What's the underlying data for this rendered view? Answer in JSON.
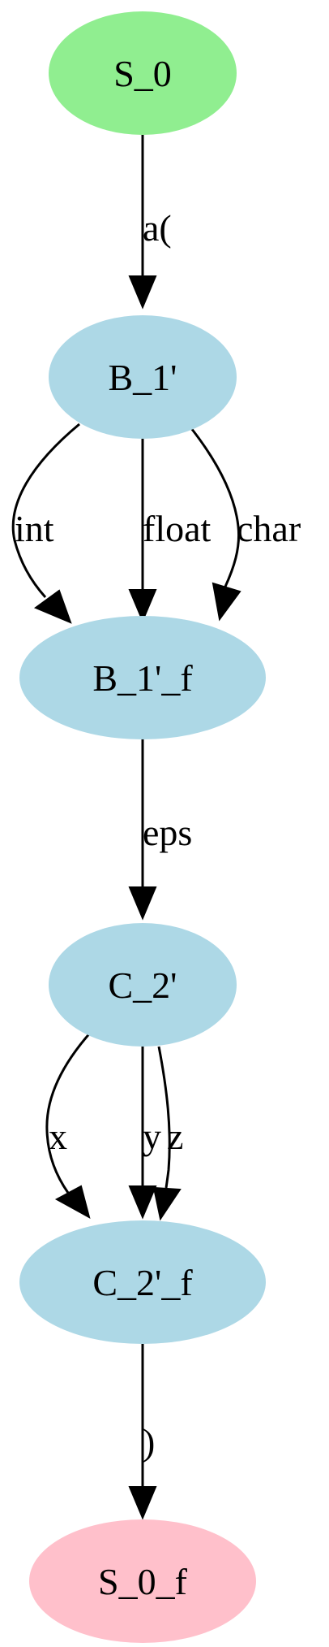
{
  "diagram": {
    "nodes": [
      {
        "id": "S_0",
        "label": "S_0",
        "color": "#90EE90"
      },
      {
        "id": "B_1p",
        "label": "B_1'",
        "color": "#ADD8E6"
      },
      {
        "id": "B_1p_f",
        "label": "B_1'_f",
        "color": "#ADD8E6"
      },
      {
        "id": "C_2p",
        "label": "C_2'",
        "color": "#ADD8E6"
      },
      {
        "id": "C_2p_f",
        "label": "C_2'_f",
        "color": "#ADD8E6"
      },
      {
        "id": "S_0_f",
        "label": "S_0_f",
        "color": "#FFC0CB"
      }
    ],
    "edges": [
      {
        "from": "S_0",
        "to": "B_1p",
        "label": "a("
      },
      {
        "from": "B_1p",
        "to": "B_1p_f",
        "label": "int"
      },
      {
        "from": "B_1p",
        "to": "B_1p_f",
        "label": "float"
      },
      {
        "from": "B_1p",
        "to": "B_1p_f",
        "label": "char"
      },
      {
        "from": "B_1p_f",
        "to": "C_2p",
        "label": "eps"
      },
      {
        "from": "C_2p",
        "to": "C_2p_f",
        "label": "x"
      },
      {
        "from": "C_2p",
        "to": "C_2p_f",
        "label": "y"
      },
      {
        "from": "C_2p",
        "to": "C_2p_f",
        "label": "z"
      },
      {
        "from": "C_2p_f",
        "to": "S_0_f",
        "label": ")"
      }
    ]
  }
}
